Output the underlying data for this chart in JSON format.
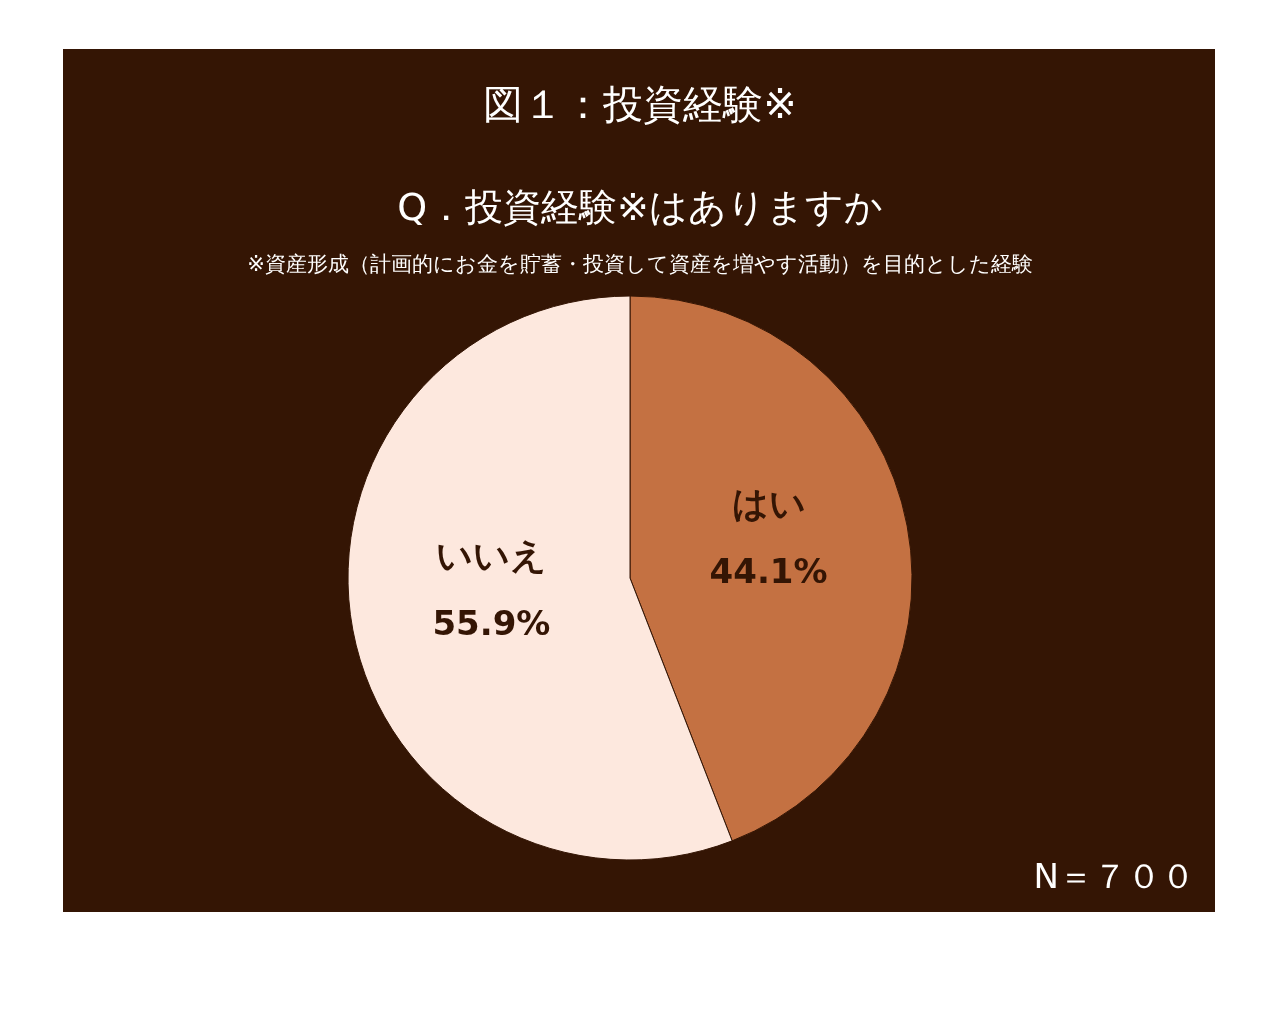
{
  "chart_data": {
    "type": "pie",
    "title": "図１：投資経験※",
    "subtitle": "Q．投資経験※はありますか",
    "annotations": [
      "※資産形成（計画的にお金を貯蓄・投資して資産を増やす活動）を目的とした経験",
      "N＝７００"
    ],
    "categories": [
      "はい",
      "いいえ"
    ],
    "values": [
      44.1,
      55.9
    ],
    "colors": [
      "#c47142",
      "#fde8de"
    ],
    "value_labels": [
      "44.1%",
      "55.9%"
    ]
  }
}
